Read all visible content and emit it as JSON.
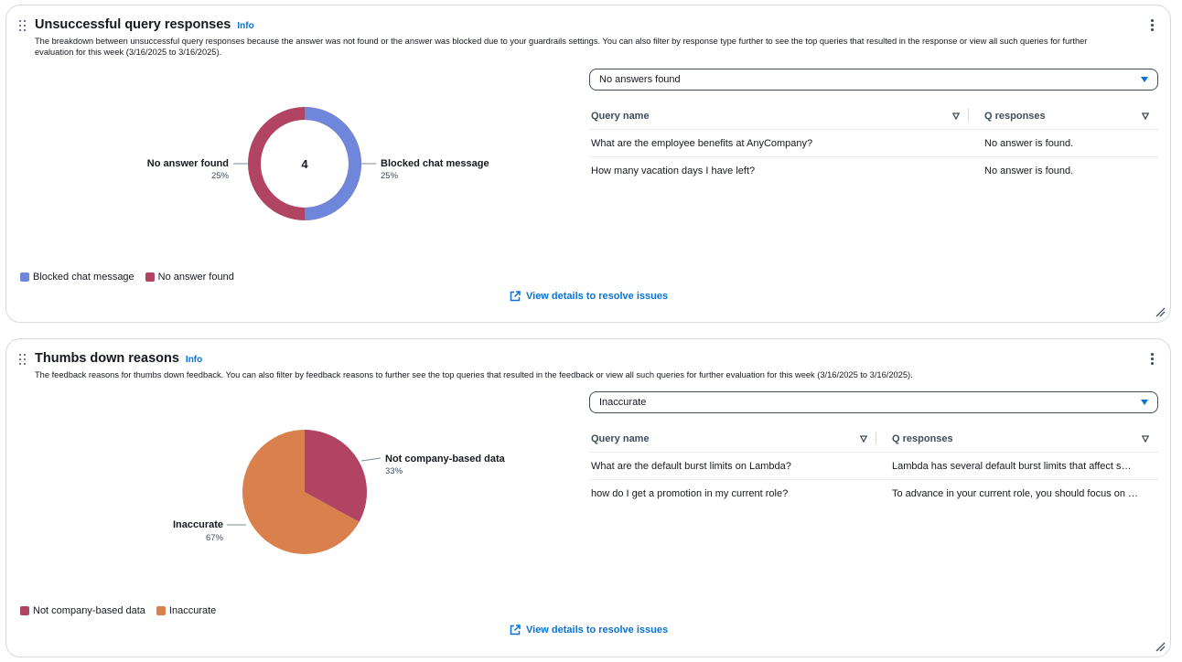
{
  "panels": [
    {
      "title": "Unsuccessful query responses",
      "info": "Info",
      "description": "The breakdown between unsuccessful query responses because the answer was not found or the answer was blocked due to your guardrails settings. You can also filter by response type further to see the top queries that resulted in the response or view all such queries for further evaluation for this week (3/16/2025 to 3/16/2025).",
      "chart_center_value": "4",
      "chart_labels": [
        {
          "title": "Blocked chat message",
          "pct": "25%"
        },
        {
          "title": "No answer found",
          "pct": "25%"
        }
      ],
      "legend": [
        "Blocked chat message",
        "No answer found"
      ],
      "view_link": "View details to resolve issues",
      "filter": {
        "selected": "No answers found"
      },
      "table": {
        "columns": [
          "Query name",
          "Q responses"
        ],
        "rows": [
          [
            "What are the employee benefits at AnyCompany?",
            "No answer is found."
          ],
          [
            "How many vacation days I have left?",
            "No answer is found."
          ]
        ]
      }
    },
    {
      "title": "Thumbs down reasons",
      "info": "Info",
      "description": "The feedback reasons for thumbs down feedback. You can also filter by feedback reasons to further see the top queries that resulted in the feedback or view all such queries for further evaluation for this week (3/16/2025 to 3/16/2025).",
      "chart_labels": [
        {
          "title": "Not company-based data",
          "pct": "33%"
        },
        {
          "title": "Inaccurate",
          "pct": "67%"
        }
      ],
      "legend": [
        "Not company-based data",
        "Inaccurate"
      ],
      "view_link": "View details to resolve issues",
      "filter": {
        "selected": "Inaccurate"
      },
      "table": {
        "columns": [
          "Query name",
          "Q responses"
        ],
        "rows": [
          [
            "What are the default burst limits on Lambda?",
            "Lambda has several default burst limits that affect s…"
          ],
          [
            "how do I get a promotion in my current role?",
            "To advance in your current role, you should focus on …"
          ]
        ]
      }
    }
  ],
  "colors": {
    "blocked": "#6f87db",
    "no_answer": "#b14462",
    "not_company": "#b14462",
    "inaccurate": "#d9804d",
    "link": "#0972d3"
  },
  "chart_data": [
    {
      "type": "pie",
      "variant": "donut",
      "categories": [
        "Blocked chat message",
        "No answer found"
      ],
      "values": [
        25,
        25
      ],
      "center_total": 4
    },
    {
      "type": "pie",
      "categories": [
        "Not company-based data",
        "Inaccurate"
      ],
      "values": [
        33,
        67
      ]
    }
  ]
}
